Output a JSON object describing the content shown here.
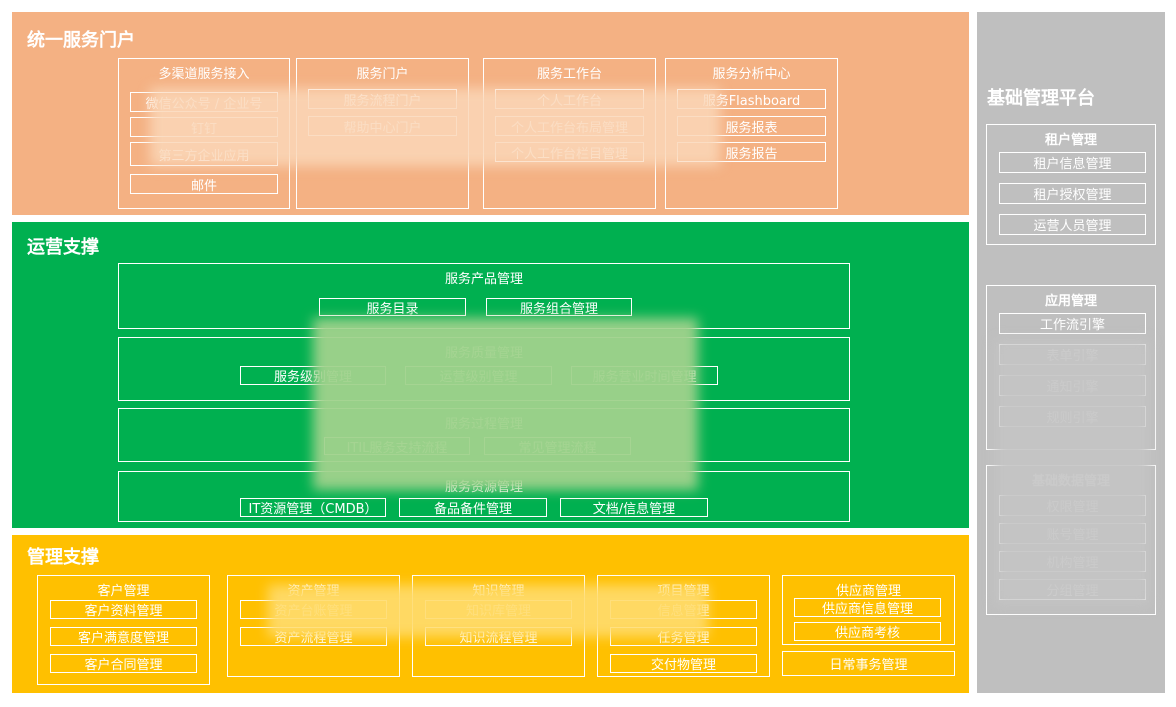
{
  "colors": {
    "portal": "#F4B183",
    "operations": "#00B050",
    "management": "#FFC000",
    "platform": "#BFBFBF"
  },
  "portal": {
    "title": "统一服务门户",
    "groups": [
      {
        "title": "多渠道服务接入",
        "items": [
          "微信公众号 / 企业号",
          "钉钉",
          "第三方企业应用",
          "邮件"
        ]
      },
      {
        "title": "服务门户",
        "items": [
          "服务流程门户",
          "帮助中心门户"
        ]
      },
      {
        "title": "服务工作台",
        "items": [
          "个人工作台",
          "个人工作台布局管理",
          "个人工作台栏目管理"
        ]
      },
      {
        "title": "服务分析中心",
        "items": [
          "服务Flashboard",
          "服务报表",
          "服务报告"
        ]
      }
    ]
  },
  "operations": {
    "title": "运营支撑",
    "groups": [
      {
        "title": "服务产品管理",
        "items": [
          "服务目录",
          "服务组合管理"
        ]
      },
      {
        "title": "服务质量管理",
        "items": [
          "服务级别管理",
          "运营级别管理",
          "服务营业时间管理"
        ]
      },
      {
        "title": "服务过程管理",
        "items": [
          "ITIL服务支持流程",
          "常见管理流程"
        ]
      },
      {
        "title": "服务资源管理",
        "items": [
          "IT资源管理（CMDB）",
          "备品备件管理",
          "文档/信息管理"
        ]
      }
    ]
  },
  "management": {
    "title": "管理支撑",
    "groups": [
      {
        "title": "客户管理",
        "items": [
          "客户资料管理",
          "客户满意度管理",
          "客户合同管理"
        ]
      },
      {
        "title": "资产管理",
        "items": [
          "资产台账管理",
          "资产流程管理"
        ]
      },
      {
        "title": "知识管理",
        "items": [
          "知识库管理",
          "知识流程管理"
        ]
      },
      {
        "title": "项目管理",
        "items": [
          "信息管理",
          "任务管理",
          "交付物管理"
        ]
      },
      {
        "title": "供应商管理",
        "items": [
          "供应商信息管理",
          "供应商考核"
        ]
      }
    ],
    "daily": "日常事务管理"
  },
  "platform": {
    "title": "基础管理平台",
    "groups": [
      {
        "title": "租户管理",
        "items": [
          "租户信息管理",
          "租户授权管理",
          "运营人员管理"
        ]
      },
      {
        "title": "应用管理",
        "items": [
          "工作流引擎",
          "表单引擎",
          "通知引擎",
          "规则引擎"
        ]
      },
      {
        "title": "基础数据管理",
        "items": [
          "权限管理",
          "账号管理",
          "机构管理",
          "分组管理"
        ]
      }
    ]
  }
}
